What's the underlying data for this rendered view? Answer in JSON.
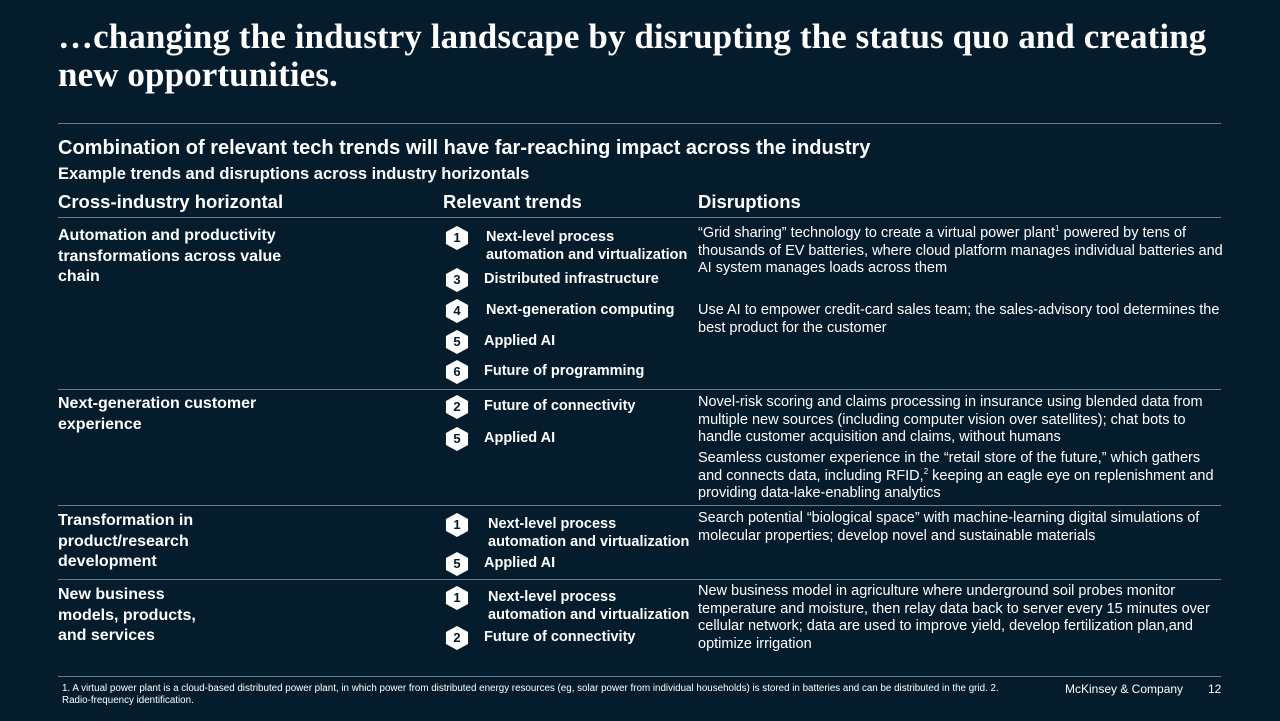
{
  "title": "…changing the industry landscape by disrupting the status quo and creating new opportunities.",
  "subtitle": "Combination of relevant tech trends will have far-reaching impact across the industry",
  "subsubtitle": "Example trends and disruptions across industry horizontals",
  "columns": {
    "horizontal": "Cross-industry horizontal",
    "trends": "Relevant trends",
    "disruptions": "Disruptions"
  },
  "rows": [
    {
      "horizontal": "Automation and productivity transformations across value chain",
      "trends": [
        {
          "num": "1",
          "label": "Next-level process automation and virtualization"
        },
        {
          "num": "3",
          "label": "Distributed infrastructure"
        },
        {
          "num": "4",
          "label": "Next-generation computing"
        },
        {
          "num": "5",
          "label": "Applied AI"
        },
        {
          "num": "6",
          "label": "Future of programming"
        }
      ],
      "disruptions": [
        {
          "before": "“Grid sharing” technology to create a virtual power plant",
          "sup": "1",
          "after": " powered by tens of thousands of EV batteries, where cloud platform manages individual batteries and AI system manages loads across them"
        },
        {
          "before": "Use AI to empower credit-card sales team; the sales-advisory tool determines the best product for the customer",
          "sup": "",
          "after": ""
        }
      ]
    },
    {
      "horizontal": "Next-generation customer experience",
      "trends": [
        {
          "num": "2",
          "label": "Future of connectivity"
        },
        {
          "num": "5",
          "label": "Applied AI"
        }
      ],
      "disruptions": [
        {
          "before": "Novel-risk scoring and claims processing in insurance using blended data from multiple new sources (including computer vision over satellites); chat bots to handle customer acquisition and claims, without humans",
          "sup": "",
          "after": ""
        },
        {
          "before": "Seamless customer experience in the “retail store of the future,” which gathers and connects data, including RFID,",
          "sup": "2",
          "after": " keeping an eagle eye on replenishment and providing data-lake-enabling analytics"
        }
      ]
    },
    {
      "horizontal": "Transformation in product/research development",
      "trends": [
        {
          "num": "1",
          "label": "Next-level process automation and virtualization"
        },
        {
          "num": "5",
          "label": "Applied AI"
        }
      ],
      "disruptions": [
        {
          "before": "Search potential “biological space” with machine-learning digital simulations of molecular properties; develop novel and sustainable materials",
          "sup": "",
          "after": ""
        }
      ]
    },
    {
      "horizontal": "New business models, products, and services",
      "trends": [
        {
          "num": "1",
          "label": "Next-level process automation and virtualization"
        },
        {
          "num": "2",
          "label": "Future of connectivity"
        }
      ],
      "disruptions": [
        {
          "before": "New business model in agriculture where underground soil probes monitor temperature and moisture, then relay data back to server every 15 minutes over cellular network; data are used to improve yield, develop fertilization plan,and optimize irrigation",
          "sup": "",
          "after": ""
        }
      ]
    }
  ],
  "footnote": "1. A virtual power plant is a cloud-based distributed power plant, in which power from distributed energy resources (eg, solar power from individual households) is stored in batteries and can be distributed in the grid. 2. Radio-frequency identification.",
  "brand": "McKinsey & Company",
  "page_number": "12",
  "colors": {
    "background": "#051c2c",
    "text": "#ffffff",
    "rule": "#6b7d8a"
  }
}
